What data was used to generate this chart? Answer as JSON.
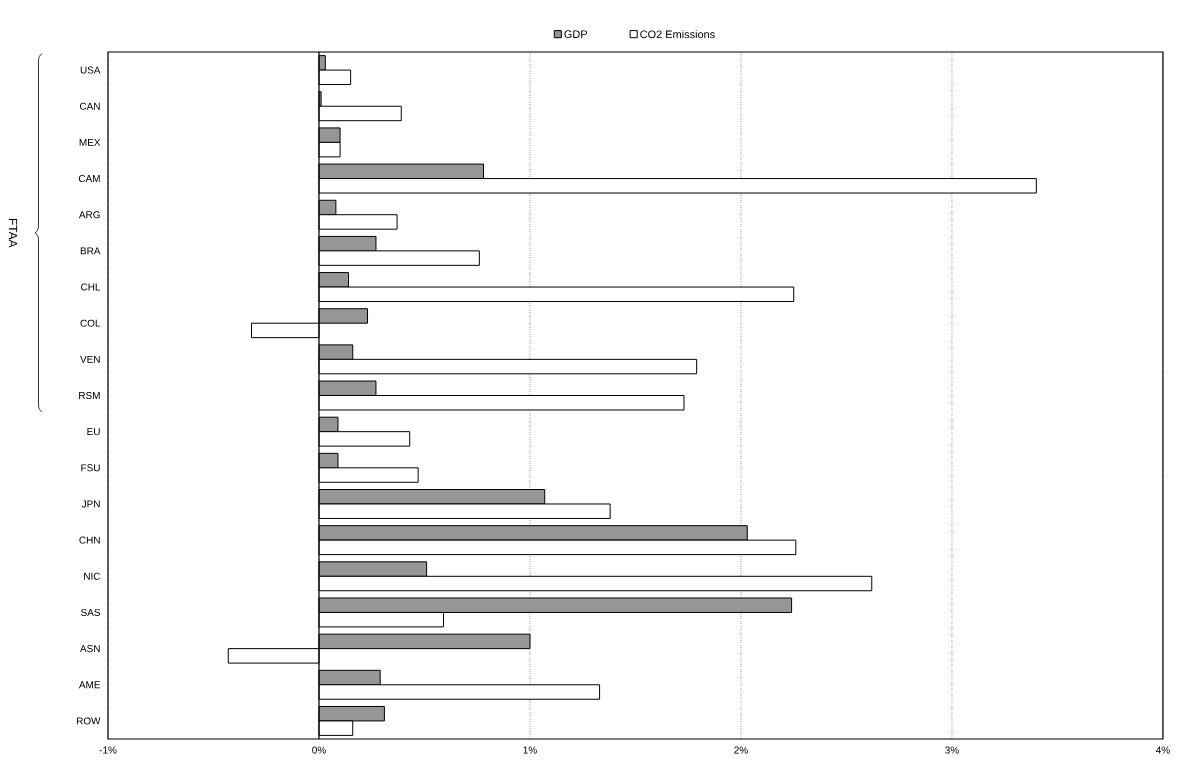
{
  "chart_data": {
    "type": "bar",
    "orientation": "horizontal",
    "categories": [
      "USA",
      "CAN",
      "MEX",
      "CAM",
      "ARG",
      "BRA",
      "CHL",
      "COL",
      "VEN",
      "RSM",
      "EU",
      "FSU",
      "JPN",
      "CHN",
      "NIC",
      "SAS",
      "ASN",
      "AME",
      "ROW"
    ],
    "series": [
      {
        "name": "GDP",
        "color": "#969696",
        "values": [
          0.03,
          0.01,
          0.1,
          0.78,
          0.08,
          0.27,
          0.14,
          0.23,
          0.16,
          0.27,
          0.09,
          0.09,
          1.07,
          2.03,
          0.51,
          2.24,
          1.0,
          0.29,
          0.31
        ]
      },
      {
        "name": "CO2 Emissions",
        "color": "#ffffff",
        "values": [
          0.15,
          0.39,
          0.1,
          3.4,
          0.37,
          0.76,
          2.25,
          -0.32,
          1.79,
          1.73,
          0.43,
          0.47,
          1.38,
          2.26,
          2.62,
          0.59,
          -0.43,
          1.33,
          0.16
        ]
      }
    ],
    "xlim": [
      -1,
      4
    ],
    "xticks": [
      {
        "value": -1,
        "label": "-1%"
      },
      {
        "value": 0,
        "label": "0%"
      },
      {
        "value": 1,
        "label": "1%"
      },
      {
        "value": 2,
        "label": "2%"
      },
      {
        "value": 3,
        "label": "3%"
      },
      {
        "value": 4,
        "label": "4%"
      }
    ],
    "grid": "x",
    "legend": "top",
    "annotations": [
      "FTAA"
    ]
  }
}
